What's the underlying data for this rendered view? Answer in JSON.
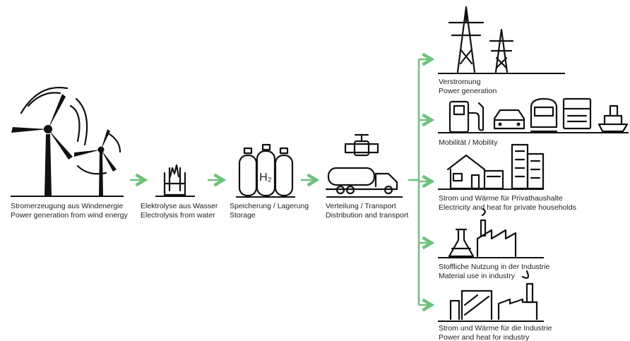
{
  "stages": [
    {
      "de": "Stromerzeugung aus Windenergie",
      "en": "Power generation from wind energy"
    },
    {
      "de": "Elektrolyse aus Wasser",
      "en": "Electrolysis from water"
    },
    {
      "de": "Speicherung / Lagerung",
      "en": "Storage"
    },
    {
      "de": "Verteilung / Transport",
      "en": "Distribution and transport"
    }
  ],
  "h2_label": "H₂",
  "outputs": [
    {
      "de": "Verstromung",
      "en": "Power generation"
    },
    {
      "de": "Mobilität / Mobility",
      "en": null
    },
    {
      "de": "Strom und Wärme für Privathaushalte",
      "en": "Electricity and heat for private households"
    },
    {
      "de": "Stoffliche Nutzung in der Industrie",
      "en": "Material use in industry"
    },
    {
      "de": "Strom und Wärme für die Industrie",
      "en": "Power and heat for industry"
    }
  ]
}
